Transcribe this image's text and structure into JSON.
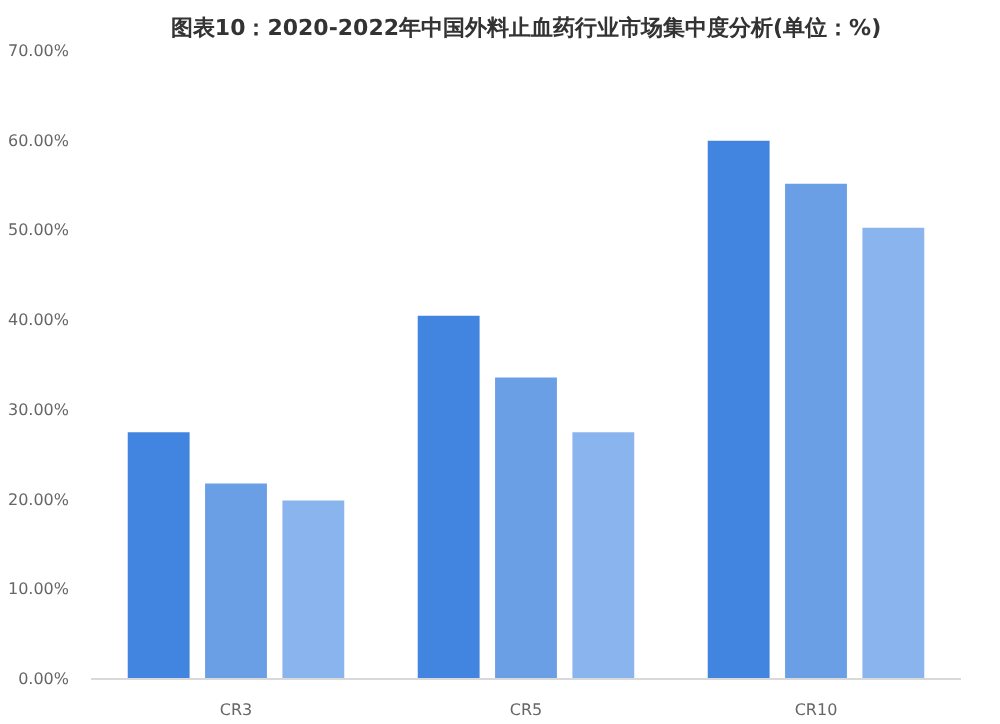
{
  "chart_data": {
    "type": "bar",
    "title": "图表10：2020-2022年中国外料止血药行业市场集中度分析(单位：%)",
    "categories": [
      "CR3",
      "CR5",
      "CR10"
    ],
    "series": [
      {
        "color": "#4285e0",
        "values": [
          27.5,
          40.5,
          60.0
        ]
      },
      {
        "color": "#6a9fe6",
        "values": [
          21.8,
          33.6,
          55.2
        ]
      },
      {
        "color": "#8ab4ee",
        "values": [
          19.9,
          27.5,
          50.3
        ]
      }
    ],
    "ylim": [
      0,
      70
    ],
    "yticks": [
      {
        "value": 0,
        "label": "0.00%"
      },
      {
        "value": 10,
        "label": "10.00%"
      },
      {
        "value": 20,
        "label": "20.00%"
      },
      {
        "value": 30,
        "label": "30.00%"
      },
      {
        "value": 40,
        "label": "40.00%"
      },
      {
        "value": 50,
        "label": "50.00%"
      },
      {
        "value": 60,
        "label": "60.00%"
      },
      {
        "value": 70,
        "label": "70.00%"
      }
    ],
    "grid": false
  }
}
